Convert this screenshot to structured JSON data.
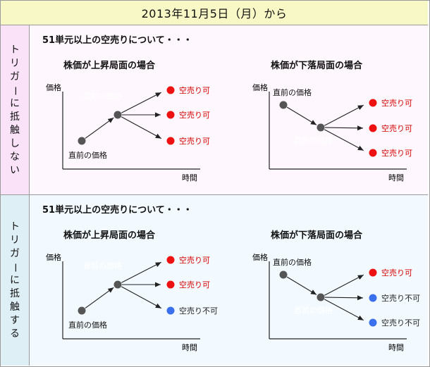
{
  "header": {
    "title": "2013年11月5日（月）から"
  },
  "sections": [
    {
      "side_label": "トリガーに抵触しない",
      "heading": "51単元以上の空売りについて・・・",
      "rise": {
        "title": "株価が上昇局面の場合",
        "y_label": "価格",
        "x_label": "時間",
        "start_label": "直前の価格",
        "ghost_label": "直前の価格",
        "outcomes": [
          "空売り可",
          "空売り可",
          "空売り可"
        ]
      },
      "fall": {
        "title": "株価が下落局面の場合",
        "y_label": "価格",
        "x_label": "時間",
        "start_label": "直前の価格",
        "ghost_label": "直前の価格",
        "outcomes": [
          "空売り可",
          "空売り可",
          "空売り可"
        ]
      }
    },
    {
      "side_label": "トリガーに抵触する",
      "heading": "51単元以上の空売りについて・・・",
      "rise": {
        "title": "株価が上昇局面の場合",
        "y_label": "価格",
        "x_label": "時間",
        "start_label": "直前の価格",
        "ghost_label": "直前の価格",
        "outcomes": [
          "空売り可",
          "空売り可",
          "空売り不可"
        ]
      },
      "fall": {
        "title": "株価が下落局面の場合",
        "y_label": "価格",
        "x_label": "時間",
        "start_label": "直前の価格",
        "ghost_label": "直前の価格",
        "outcomes": [
          "空売り可",
          "空売り不可",
          "空売り不可"
        ]
      }
    }
  ],
  "colors": {
    "frame": "#9a9a9a",
    "header_bg": "#f8f8c6",
    "section1_side": "#fae3f8",
    "section1_content": "#fef7fd",
    "section2_side": "#dfeff6",
    "section2_content": "#f3faff",
    "allowed_dot": "#ee1111",
    "allowed_text": "#d40000",
    "denied_dot": "#3a6fee",
    "denied_text": "#222222",
    "price_dot": "#555555",
    "ghost_text": "#ffffff"
  }
}
